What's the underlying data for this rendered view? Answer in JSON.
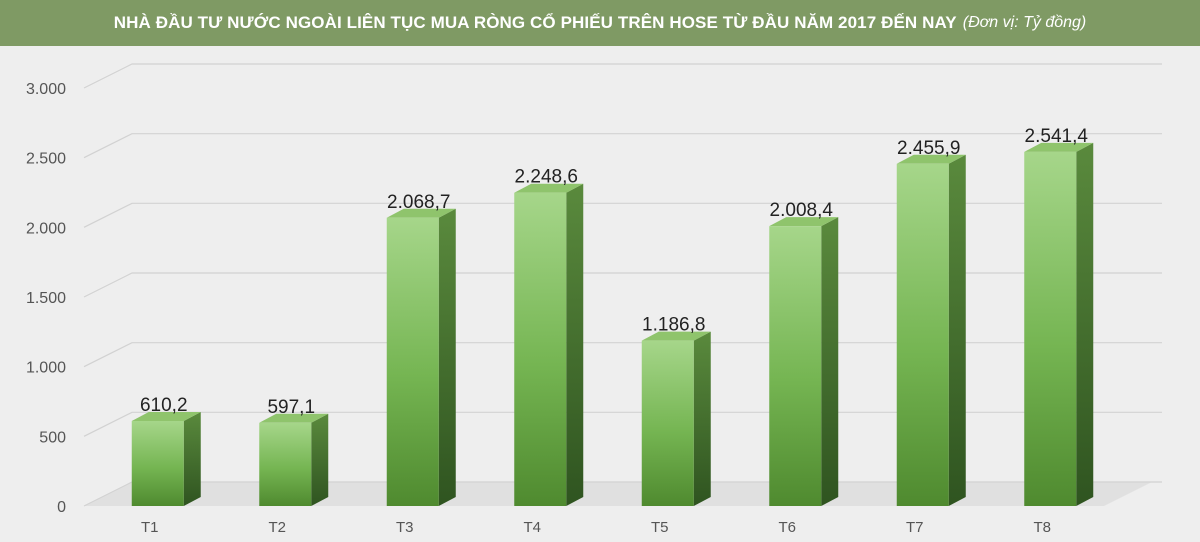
{
  "title": {
    "main": "NHÀ ĐẦU TƯ NƯỚC NGOÀI LIÊN TỤC MUA RÒNG CỔ PHIẾU TRÊN HOSE TỪ ĐẦU NĂM 2017 ĐẾN NAY",
    "unit": "(Đơn vị: Tỷ đồng)"
  },
  "colors": {
    "title_bg": "#7f9a64",
    "bar_front_light": "#a6d68a",
    "bar_front_dark": "#4f8a2f",
    "bar_side": "#3d6b26",
    "bar_top": "#8bbf6a",
    "grid": "#d6d6d6",
    "floor": "#e3e3e3"
  },
  "chart_data": {
    "type": "bar",
    "style": "3d",
    "title": "NHÀ ĐẦU TƯ NƯỚC NGOÀI LIÊN TỤC MUA RÒNG CỔ PHIẾU TRÊN HOSE TỪ ĐẦU NĂM 2017 ĐẾN NAY",
    "unit": "(Đơn vị: Tỷ đồng)",
    "categories": [
      "T1",
      "T2",
      "T3",
      "T4",
      "T5",
      "T6",
      "T7",
      "T8"
    ],
    "values": [
      610.2,
      597.1,
      2068.7,
      2248.6,
      1186.8,
      2008.4,
      2455.9,
      2541.4
    ],
    "value_labels": [
      "610,2",
      "597,1",
      "2.068,7",
      "2.248,6",
      "1.186,8",
      "2.008,4",
      "2.455,9",
      "2.541,4"
    ],
    "ylim": [
      0,
      3000
    ],
    "yticks": [
      0,
      500,
      1000,
      1500,
      2000,
      2500,
      3000
    ],
    "ytick_labels": [
      "0",
      "500",
      "1.000",
      "1.500",
      "2.000",
      "2.500",
      "3.000"
    ],
    "grid": true,
    "legend": "none"
  }
}
